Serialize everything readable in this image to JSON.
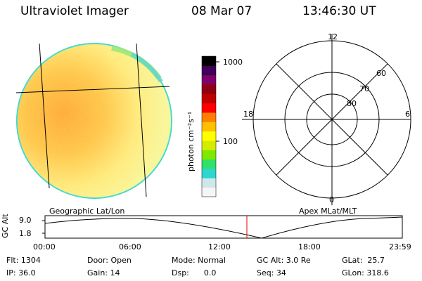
{
  "header": {
    "title": "Ultraviolet Imager",
    "date": "08 Mar 07",
    "time": "13:46:30 UT"
  },
  "image_panel": {
    "caption": "Geographic Lat/Lon"
  },
  "colorbar": {
    "label": "photon cm⁻²s⁻¹",
    "ticks": [
      "1000",
      "100"
    ]
  },
  "polar_plot": {
    "caption": "Apex MLat/MLT",
    "mlt_labels": {
      "top": "12",
      "left": "18",
      "right": "6",
      "bottom": "0"
    },
    "lat_labels": [
      "60",
      "70",
      "80"
    ]
  },
  "altitude_plot": {
    "ylabel": "GC Alt",
    "yticks": [
      "9.0",
      "1.8"
    ],
    "xticks": [
      "00:00",
      "06:00",
      "12:00",
      "18:00",
      "23:59"
    ]
  },
  "info": {
    "flt": "Flt: 1304",
    "ip": "IP: 36.0",
    "door": "Door: Open",
    "gain": "Gain: 14",
    "mode": "Mode: Normal",
    "dsp": "Dsp:      0.0",
    "gcalt": "GC Alt: 3.0 Re",
    "seq": "Seq: 34",
    "glat": "GLat:  25.7",
    "glon": "GLon: 318.6"
  },
  "colors": {
    "marker_red": "#e00000",
    "colorbar_stops": [
      "#f5f5f5",
      "#cfe6ea",
      "#2fd6cf",
      "#2fe06a",
      "#7fe800",
      "#d4ec00",
      "#ffff00",
      "#ffc000",
      "#ff8000",
      "#ff0000",
      "#c00000",
      "#900010",
      "#80006a",
      "#40005a",
      "#000000"
    ]
  }
}
